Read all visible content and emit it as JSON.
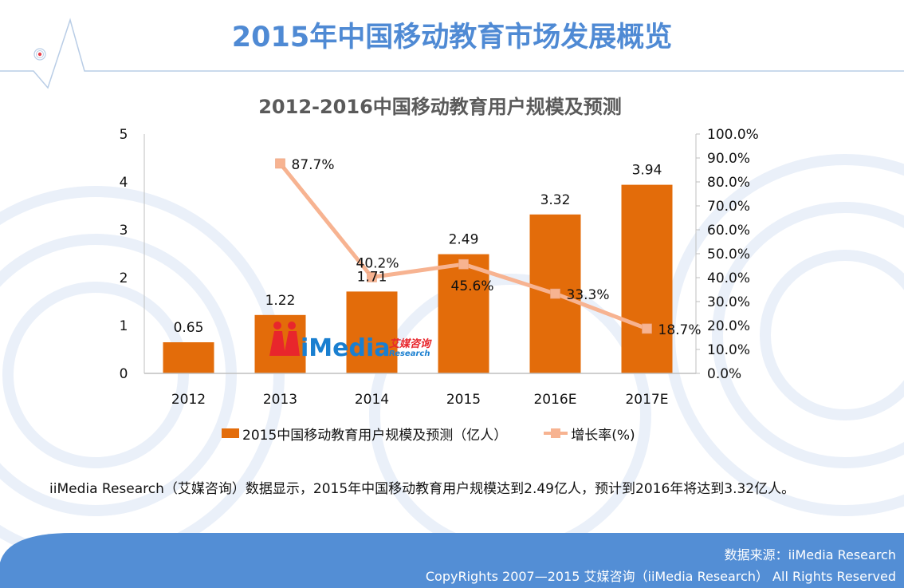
{
  "page": {
    "main_title": "2015年中国移动教育市场发展概览",
    "summary": "iiMedia Research（艾媒咨询）数据显示，2015年中国移动教育用户规模达到2.49亿人，预计到2016年将达到3.32亿人。",
    "footer_source": "数据来源：iiMedia Research",
    "footer_copyright": "CopyRights 2007—2015 艾媒咨询（iiMedia Research） All Rights Reserved",
    "watermark": {
      "brand": "iMedia",
      "cn": "艾媒咨询",
      "en": "Research"
    }
  },
  "colors": {
    "title": "#4f8ad4",
    "bar": "#e36c0a",
    "line": "#f7b391",
    "footer": "#538ed5"
  },
  "chart_data": {
    "type": "bar",
    "title": "2012-2016中国移动教育用户规模及预测",
    "categories": [
      "2012",
      "2013",
      "2014",
      "2015",
      "2016E",
      "2017E"
    ],
    "series": [
      {
        "name": "2015中国移动教育用户规模及预测（亿人）",
        "type": "bar",
        "axis": "left",
        "values": [
          0.65,
          1.22,
          1.71,
          2.49,
          3.32,
          3.94
        ],
        "labels": [
          "0.65",
          "1.22",
          "1.71",
          "2.49",
          "3.32",
          "3.94"
        ]
      },
      {
        "name": "增长率(%)",
        "type": "line",
        "axis": "right",
        "values": [
          null,
          87.7,
          40.2,
          45.6,
          33.3,
          18.7
        ],
        "labels": [
          "",
          "87.7%",
          "40.2%",
          "45.6%",
          "33.3%",
          "18.7%"
        ]
      }
    ],
    "left_axis": {
      "ylim": [
        0,
        5
      ],
      "ticks": [
        "0",
        "1",
        "2",
        "3",
        "4",
        "5"
      ]
    },
    "right_axis": {
      "ylim": [
        0,
        100
      ],
      "ticks": [
        "0.0%",
        "10.0%",
        "20.0%",
        "30.0%",
        "40.0%",
        "50.0%",
        "60.0%",
        "70.0%",
        "80.0%",
        "90.0%",
        "100.0%"
      ]
    },
    "grid": false,
    "legend": "bottom"
  }
}
